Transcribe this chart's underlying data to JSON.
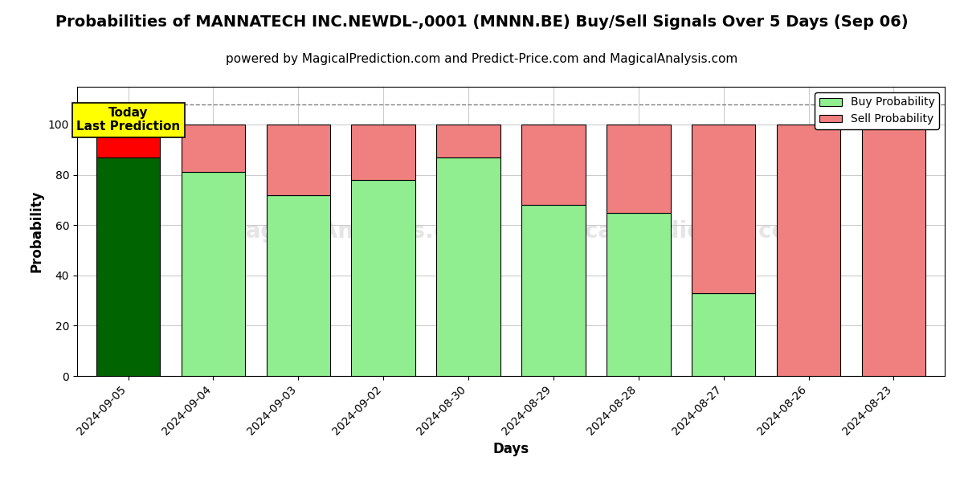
{
  "title": "Probabilities of MANNATECH INC.NEWDL-,0001 (MNNN.BE) Buy/Sell Signals Over 5 Days (Sep 06)",
  "subtitle": "powered by MagicalPrediction.com and Predict-Price.com and MagicalAnalysis.com",
  "xlabel": "Days",
  "ylabel": "Probability",
  "categories": [
    "2024-09-05",
    "2024-09-04",
    "2024-09-03",
    "2024-09-02",
    "2024-08-30",
    "2024-08-29",
    "2024-08-28",
    "2024-08-27",
    "2024-08-26",
    "2024-08-23"
  ],
  "buy_values": [
    87,
    81,
    72,
    78,
    87,
    68,
    65,
    33,
    0,
    0
  ],
  "sell_values": [
    13,
    19,
    28,
    22,
    13,
    32,
    35,
    67,
    100,
    100
  ],
  "buy_color_today": "#006400",
  "sell_color_today": "#FF0000",
  "buy_color_normal": "#90EE90",
  "sell_color_normal": "#F08080",
  "bar_edge_color": "#000000",
  "dashed_line_y": 108,
  "ylim": [
    0,
    115
  ],
  "yticks": [
    0,
    20,
    40,
    60,
    80,
    100
  ],
  "annotation_text": "Today\nLast Prediction",
  "annotation_color": "#FFFF00",
  "legend_buy": "Buy Probability",
  "legend_sell": "Sell Probability",
  "grid_color": "#cccccc",
  "title_fontsize": 14,
  "subtitle_fontsize": 11,
  "label_fontsize": 12,
  "tick_fontsize": 10,
  "bar_width": 0.75,
  "figsize": [
    12,
    6
  ]
}
